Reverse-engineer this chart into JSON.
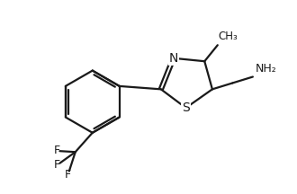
{
  "background_color": "#ffffff",
  "line_color": "#1a1a1a",
  "line_width": 1.6,
  "font_size": 9,
  "figsize": [
    3.3,
    2.16
  ],
  "dpi": 100,
  "xlim": [
    0.0,
    9.5
  ],
  "ylim": [
    0.0,
    6.2
  ]
}
